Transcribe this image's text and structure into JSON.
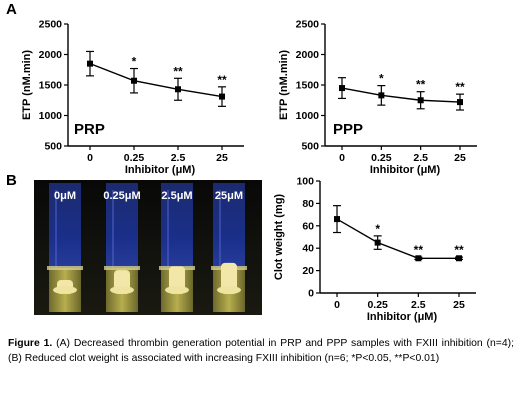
{
  "figure": {
    "panel_a_label": "A",
    "panel_b_label": "B",
    "photo": {
      "vial_labels": [
        "0μM",
        "0.25μM",
        "2.5μM",
        "25μM"
      ]
    }
  },
  "caption": {
    "lead": "Figure 1.",
    "text": " (A) Decreased thrombin generation potential in PRP and PPP samples with FXIII inhibition (n=4); (B) Reduced clot weight is associated with increasing FXIII inhibition (n=6; *P<0.05, **P<0.01)"
  },
  "chart_data": [
    {
      "type": "line",
      "panel": "A",
      "inset_label": "PRP",
      "categories": [
        "0",
        "0.25",
        "2.5",
        "25"
      ],
      "values": [
        1850,
        1570,
        1430,
        1310
      ],
      "error": [
        200,
        200,
        180,
        160
      ],
      "significance": [
        "",
        "*",
        "**",
        "**"
      ],
      "xlabel": "Inhibitor (μM)",
      "ylabel": "ETP (nM.min)",
      "ylim": [
        500,
        2500
      ],
      "yticks": [
        "500",
        "1000",
        "1500",
        "2000",
        "2500"
      ]
    },
    {
      "type": "line",
      "panel": "A",
      "inset_label": "PPP",
      "categories": [
        "0",
        "0.25",
        "2.5",
        "25"
      ],
      "values": [
        1450,
        1330,
        1250,
        1220
      ],
      "error": [
        170,
        160,
        140,
        130
      ],
      "significance": [
        "",
        "*",
        "**",
        "**"
      ],
      "xlabel": "Inhibitor (μM)",
      "ylabel": "ETP (nM.min)",
      "ylim": [
        500,
        2500
      ],
      "yticks": [
        "500",
        "1000",
        "1500",
        "2000",
        "2500"
      ]
    },
    {
      "type": "line",
      "panel": "B",
      "inset_label": "",
      "categories": [
        "0",
        "0.25",
        "2.5",
        "25"
      ],
      "values": [
        66,
        45,
        31,
        31
      ],
      "error": [
        12,
        6,
        1,
        1
      ],
      "significance": [
        "",
        "*",
        "**",
        "**"
      ],
      "xlabel": "Inhibitor (μM)",
      "ylabel": "Clot weight (mg)",
      "ylim": [
        0,
        100
      ],
      "yticks": [
        "0",
        "20",
        "40",
        "60",
        "80",
        "100"
      ]
    }
  ]
}
